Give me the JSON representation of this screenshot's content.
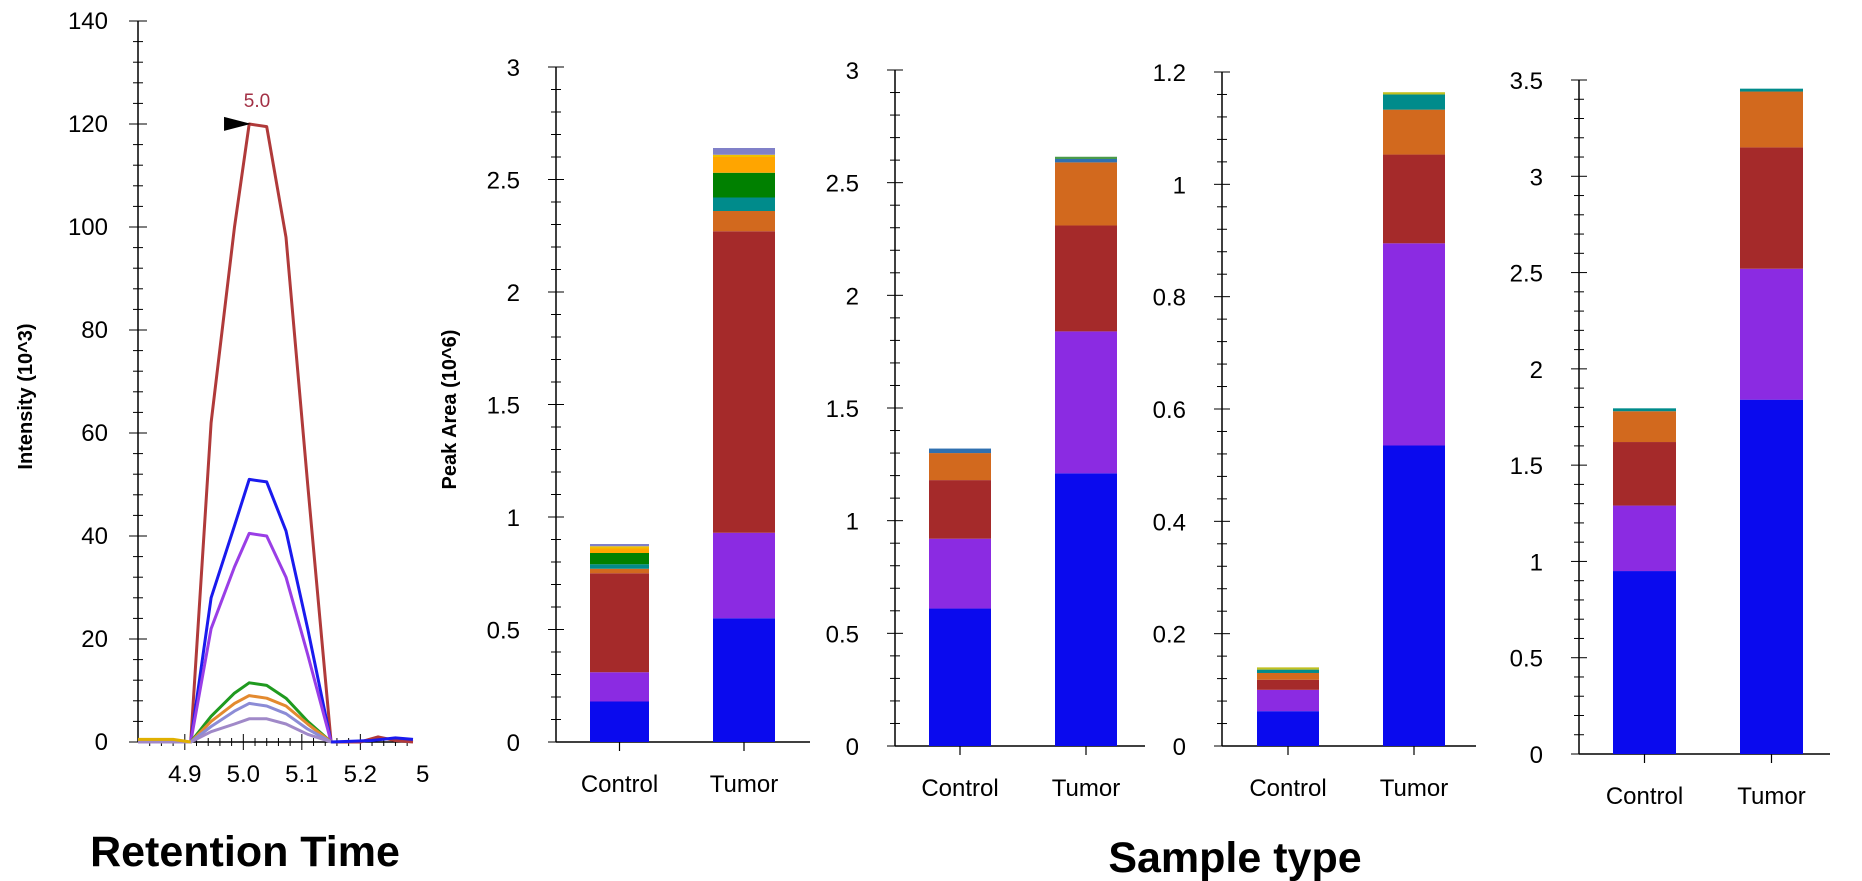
{
  "caption": {
    "left": "Retention Time",
    "right": "Sample type"
  },
  "chart_data": [
    {
      "type": "line",
      "ylabel": "Intensity (10^3)",
      "xlabel": "Retention Time",
      "ylim": [
        0,
        140
      ],
      "y_ticks": [
        "0",
        "20",
        "40",
        "60",
        "80",
        "100",
        "120",
        "140"
      ],
      "xlim": [
        4.82,
        5.29
      ],
      "x_ticks": [
        "4.9",
        "5.0",
        "5.1",
        "5.2"
      ],
      "x_ticks_partial": "5",
      "annotation": {
        "label": "5.0",
        "x": 5.02,
        "y": 121,
        "color": "#a33045"
      },
      "series": [
        {
          "color": "#b03a3a",
          "x": [
            4.82,
            4.86,
            4.88,
            4.91,
            4.945,
            4.985,
            5.01,
            5.04,
            5.073,
            5.11,
            5.15
          ],
          "y": [
            0,
            0,
            0,
            0,
            62,
            100,
            120,
            119.5,
            98,
            50,
            0
          ]
        },
        {
          "color": "#1a1aee",
          "x": [
            4.82,
            4.86,
            4.88,
            4.91,
            4.945,
            4.985,
            5.01,
            5.04,
            5.073,
            5.11,
            5.15
          ],
          "y": [
            0,
            0,
            0,
            0,
            28,
            42,
            51,
            50.5,
            41,
            22,
            0
          ]
        },
        {
          "color": "#9a3ee6",
          "x": [
            4.82,
            4.86,
            4.88,
            4.91,
            4.945,
            4.985,
            5.01,
            5.04,
            5.073,
            5.11,
            5.15
          ],
          "y": [
            0,
            0,
            0,
            0,
            22,
            34,
            40.5,
            40,
            32,
            17,
            0
          ]
        },
        {
          "color": "#1f9a1f",
          "x": [
            4.82,
            4.86,
            4.88,
            4.91,
            4.945,
            4.985,
            5.01,
            5.04,
            5.073,
            5.11,
            5.15
          ],
          "y": [
            0,
            0,
            0,
            0,
            5,
            9.5,
            11.5,
            11,
            8.5,
            4,
            0
          ]
        },
        {
          "color": "#e38a2f",
          "x": [
            4.82,
            4.86,
            4.88,
            4.91,
            4.945,
            4.985,
            5.01,
            5.04,
            5.073,
            5.11,
            5.15
          ],
          "y": [
            0,
            0,
            0,
            0,
            4,
            7.5,
            9,
            8.5,
            7,
            3.5,
            0
          ]
        },
        {
          "color": "#8c8cd6",
          "x": [
            4.82,
            4.86,
            4.88,
            4.91,
            4.945,
            4.985,
            5.01,
            5.04,
            5.073,
            5.11,
            5.15
          ],
          "y": [
            0,
            0,
            0,
            0,
            3,
            6,
            7.5,
            7,
            5.5,
            2.5,
            0
          ]
        },
        {
          "color": "#a089c8",
          "x": [
            4.82,
            4.86,
            4.88,
            4.91,
            4.945,
            4.985,
            5.01,
            5.04,
            5.073,
            5.11,
            5.15
          ],
          "y": [
            0,
            0,
            0,
            0,
            2,
            3.5,
            4.5,
            4.5,
            3.5,
            1.5,
            0
          ]
        },
        {
          "color": "#e0b000",
          "x": [
            4.82,
            4.88,
            4.91
          ],
          "y": [
            0.5,
            0.5,
            0
          ]
        },
        {
          "color": "#b03a3a",
          "x": [
            5.15,
            5.2,
            5.23,
            5.26,
            5.29
          ],
          "y": [
            0,
            0,
            1,
            0.3,
            0
          ]
        },
        {
          "color": "#1a1aee",
          "x": [
            5.15,
            5.22,
            5.26,
            5.29
          ],
          "y": [
            0,
            0.3,
            0.8,
            0.5
          ]
        }
      ]
    },
    {
      "type": "bar",
      "stacked": true,
      "ylabel": "Peak Area (10^6)",
      "ylim": [
        0,
        3
      ],
      "y_ticks": [
        "0",
        "0.5",
        "1",
        "1.5",
        "2",
        "2.5",
        "3"
      ],
      "categories": [
        "Control",
        "Tumor"
      ],
      "series": [
        {
          "color": "#0a0aee",
          "values": [
            0.18,
            0.55
          ]
        },
        {
          "color": "#8b2be2",
          "values": [
            0.13,
            0.38
          ]
        },
        {
          "color": "#a52a2a",
          "values": [
            0.44,
            1.34
          ]
        },
        {
          "color": "#d2691e",
          "values": [
            0.02,
            0.09
          ]
        },
        {
          "color": "#008b8b",
          "values": [
            0.02,
            0.06
          ]
        },
        {
          "color": "#008000",
          "values": [
            0.05,
            0.11
          ]
        },
        {
          "color": "#ffa500",
          "values": [
            0.02,
            0.07
          ]
        },
        {
          "color": "#f0c000",
          "values": [
            0.01,
            0.01
          ]
        },
        {
          "color": "#8080c8",
          "values": [
            0.01,
            0.03
          ]
        }
      ]
    },
    {
      "type": "bar",
      "stacked": true,
      "ylim": [
        0,
        3
      ],
      "y_ticks": [
        "0",
        "0.5",
        "1",
        "1.5",
        "2",
        "2.5",
        "3"
      ],
      "categories": [
        "Control",
        "Tumor"
      ],
      "series": [
        {
          "color": "#0a0aee",
          "values": [
            0.61,
            1.21
          ]
        },
        {
          "color": "#8b2be2",
          "values": [
            0.31,
            0.63
          ]
        },
        {
          "color": "#a52a2a",
          "values": [
            0.26,
            0.47
          ]
        },
        {
          "color": "#d2691e",
          "values": [
            0.12,
            0.28
          ]
        },
        {
          "color": "#3070b0",
          "values": [
            0.02,
            0.015
          ]
        },
        {
          "color": "#4a9a4a",
          "values": [
            0.0,
            0.01
          ]
        }
      ]
    },
    {
      "type": "bar",
      "stacked": true,
      "ylim": [
        0,
        1.2
      ],
      "y_ticks": [
        "0",
        "0.2",
        "0.4",
        "0.6",
        "0.8",
        "1",
        "1.2"
      ],
      "categories": [
        "Control",
        "Tumor"
      ],
      "series": [
        {
          "color": "#0a0aee",
          "values": [
            0.062,
            0.535
          ]
        },
        {
          "color": "#8b2be2",
          "values": [
            0.038,
            0.36
          ]
        },
        {
          "color": "#a52a2a",
          "values": [
            0.018,
            0.158
          ]
        },
        {
          "color": "#d2691e",
          "values": [
            0.012,
            0.08
          ]
        },
        {
          "color": "#008b8b",
          "values": [
            0.006,
            0.027
          ]
        },
        {
          "color": "#c0c020",
          "values": [
            0.004,
            0.004
          ]
        }
      ]
    },
    {
      "type": "bar",
      "stacked": true,
      "ylim": [
        0,
        3.5
      ],
      "y_ticks": [
        "0",
        "0.5",
        "1",
        "1.5",
        "2",
        "2.5",
        "3",
        "3.5"
      ],
      "categories": [
        "Control",
        "Tumor"
      ],
      "series": [
        {
          "color": "#0a0aee",
          "values": [
            0.95,
            1.84
          ]
        },
        {
          "color": "#8b2be2",
          "values": [
            0.34,
            0.68
          ]
        },
        {
          "color": "#a52a2a",
          "values": [
            0.33,
            0.63
          ]
        },
        {
          "color": "#d2691e",
          "values": [
            0.16,
            0.29
          ]
        },
        {
          "color": "#008b8b",
          "values": [
            0.015,
            0.015
          ]
        }
      ]
    }
  ]
}
